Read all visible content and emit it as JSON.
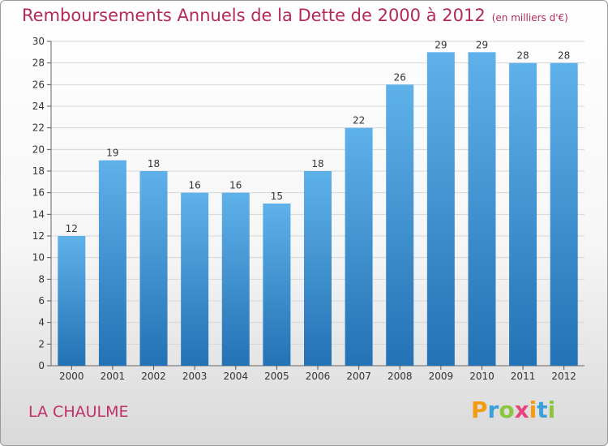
{
  "header": {
    "title": "Remboursements Annuels de la Dette de 2000 à 2012",
    "unit": "(en milliers d'€)"
  },
  "footer": {
    "commune": "LA CHAULME",
    "logo_text": "Proxiti",
    "logo_colors": [
      "#f39c12",
      "#3aa0dc",
      "#8cc63f",
      "#e8457a",
      "#f39c12",
      "#3aa0dc",
      "#8cc63f"
    ]
  },
  "colors": {
    "bar_top": "#5fb1ea",
    "bar_bottom": "#2372b5",
    "grid": "#d6d6d6",
    "axis_text": "#333333"
  },
  "chart_data": {
    "type": "bar",
    "title": "Remboursements Annuels de la Dette de 2000 à 2012",
    "xlabel": "",
    "ylabel": "",
    "categories": [
      "2000",
      "2001",
      "2002",
      "2003",
      "2004",
      "2005",
      "2006",
      "2007",
      "2008",
      "2009",
      "2010",
      "2011",
      "2012"
    ],
    "values": [
      12,
      19,
      18,
      16,
      16,
      15,
      18,
      22,
      26,
      29,
      29,
      28,
      28
    ],
    "data_labels": [
      "12",
      "19",
      "18",
      "16",
      "16",
      "15",
      "18",
      "22",
      "26",
      "29",
      "29",
      "28",
      "28"
    ],
    "ylim": [
      0,
      30
    ],
    "yticks": [
      0,
      2,
      4,
      6,
      8,
      10,
      12,
      14,
      16,
      18,
      20,
      22,
      24,
      26,
      28,
      30
    ],
    "grid": true,
    "legend": "none"
  }
}
